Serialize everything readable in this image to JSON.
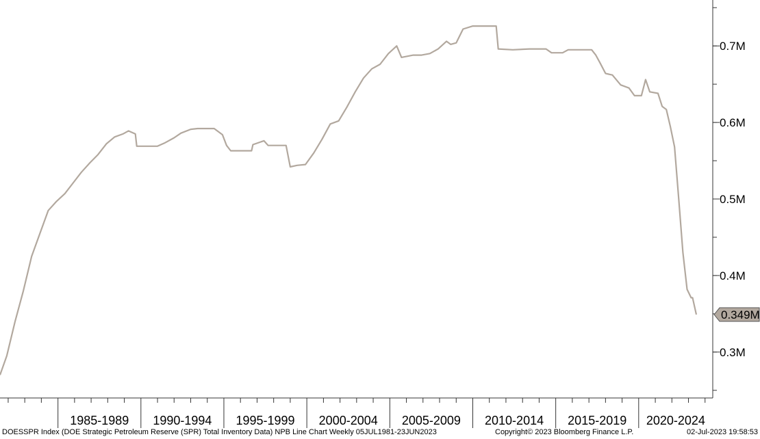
{
  "chart_data": {
    "type": "line",
    "title": "",
    "xlabel": "",
    "ylabel": "",
    "y_unit": "barrels",
    "ylim": [
      240000,
      760000
    ],
    "y_ticks": [
      {
        "value": 300000,
        "label": "0.3M"
      },
      {
        "value": 400000,
        "label": "0.4M"
      },
      {
        "value": 500000,
        "label": "0.5M"
      },
      {
        "value": 600000,
        "label": "0.6M"
      },
      {
        "value": 700000,
        "label": "0.7M"
      }
    ],
    "x_range": [
      "1981-07-05",
      "2023-06-23"
    ],
    "x_bins": [
      {
        "label": "1985-1989",
        "start": "1985-01-01",
        "end": "1990-01-01"
      },
      {
        "label": "1990-1994",
        "start": "1990-01-01",
        "end": "1995-01-01"
      },
      {
        "label": "1995-1999",
        "start": "1995-01-01",
        "end": "2000-01-01"
      },
      {
        "label": "2000-2004",
        "start": "2000-01-01",
        "end": "2005-01-01"
      },
      {
        "label": "2005-2009",
        "start": "2005-01-01",
        "end": "2010-01-01"
      },
      {
        "label": "2010-2014",
        "start": "2010-01-01",
        "end": "2015-01-01"
      },
      {
        "label": "2015-2019",
        "start": "2015-01-01",
        "end": "2020-01-01"
      },
      {
        "label": "2020-2024",
        "start": "2020-01-01",
        "end": "2025-01-01"
      }
    ],
    "last_value_label": "0.349M",
    "grid": false,
    "series": [
      {
        "color": "#b2a89e",
        "points": [
          [
            "1981-07-05",
            270000
          ],
          [
            "1981-12-01",
            295000
          ],
          [
            "1982-06-01",
            340000
          ],
          [
            "1982-12-01",
            380000
          ],
          [
            "1983-06-01",
            425000
          ],
          [
            "1983-12-01",
            455000
          ],
          [
            "1984-06-01",
            485000
          ],
          [
            "1984-12-01",
            497000
          ],
          [
            "1985-06-01",
            507000
          ],
          [
            "1985-12-01",
            521000
          ],
          [
            "1986-06-01",
            535000
          ],
          [
            "1986-12-01",
            547000
          ],
          [
            "1987-06-01",
            558000
          ],
          [
            "1987-12-01",
            572000
          ],
          [
            "1988-06-01",
            581000
          ],
          [
            "1988-12-01",
            585000
          ],
          [
            "1989-04-01",
            589000
          ],
          [
            "1989-09-01",
            585000
          ],
          [
            "1989-10-01",
            569000
          ],
          [
            "1990-06-01",
            569000
          ],
          [
            "1991-01-01",
            569000
          ],
          [
            "1991-06-01",
            573000
          ],
          [
            "1992-01-01",
            580000
          ],
          [
            "1992-06-01",
            586000
          ],
          [
            "1993-01-01",
            591000
          ],
          [
            "1993-06-01",
            592000
          ],
          [
            "1994-06-01",
            592000
          ],
          [
            "1994-12-01",
            584000
          ],
          [
            "1995-03-01",
            570000
          ],
          [
            "1995-06-01",
            563000
          ],
          [
            "1996-06-01",
            563000
          ],
          [
            "1996-09-01",
            563000
          ],
          [
            "1996-10-01",
            571000
          ],
          [
            "1997-06-01",
            576000
          ],
          [
            "1997-09-01",
            570000
          ],
          [
            "1998-06-01",
            570000
          ],
          [
            "1998-10-01",
            570000
          ],
          [
            "1999-01-01",
            542000
          ],
          [
            "1999-06-01",
            544000
          ],
          [
            "1999-12-01",
            545000
          ],
          [
            "2000-06-01",
            560000
          ],
          [
            "2000-12-01",
            578000
          ],
          [
            "2001-06-01",
            598000
          ],
          [
            "2001-12-01",
            602000
          ],
          [
            "2002-06-01",
            620000
          ],
          [
            "2002-12-01",
            640000
          ],
          [
            "2003-06-01",
            658000
          ],
          [
            "2003-12-01",
            670000
          ],
          [
            "2004-06-01",
            676000
          ],
          [
            "2004-12-01",
            690000
          ],
          [
            "2005-06-01",
            700000
          ],
          [
            "2005-09-15",
            685000
          ],
          [
            "2006-06-01",
            688000
          ],
          [
            "2006-12-01",
            688000
          ],
          [
            "2007-06-01",
            690000
          ],
          [
            "2007-12-01",
            696000
          ],
          [
            "2008-06-01",
            706000
          ],
          [
            "2008-09-01",
            702000
          ],
          [
            "2009-01-01",
            704000
          ],
          [
            "2009-06-01",
            722000
          ],
          [
            "2010-01-01",
            726000
          ],
          [
            "2011-06-01",
            726000
          ],
          [
            "2011-07-15",
            696000
          ],
          [
            "2012-06-01",
            695000
          ],
          [
            "2013-06-01",
            696000
          ],
          [
            "2014-06-01",
            696000
          ],
          [
            "2014-10-01",
            691000
          ],
          [
            "2015-06-01",
            691000
          ],
          [
            "2015-10-01",
            695000
          ],
          [
            "2016-06-01",
            695000
          ],
          [
            "2017-03-01",
            695000
          ],
          [
            "2017-06-01",
            688000
          ],
          [
            "2017-09-01",
            678000
          ],
          [
            "2018-01-01",
            664000
          ],
          [
            "2018-06-01",
            662000
          ],
          [
            "2018-12-01",
            649000
          ],
          [
            "2019-06-01",
            645000
          ],
          [
            "2019-10-01",
            635000
          ],
          [
            "2020-03-01",
            635000
          ],
          [
            "2020-06-01",
            656000
          ],
          [
            "2020-09-01",
            640000
          ],
          [
            "2021-03-01",
            638000
          ],
          [
            "2021-06-01",
            621000
          ],
          [
            "2021-09-01",
            617000
          ],
          [
            "2021-12-01",
            594000
          ],
          [
            "2022-03-01",
            568000
          ],
          [
            "2022-06-01",
            500000
          ],
          [
            "2022-09-01",
            430000
          ],
          [
            "2022-12-01",
            382000
          ],
          [
            "2023-03-01",
            371000
          ],
          [
            "2023-04-01",
            371000
          ],
          [
            "2023-06-23",
            349000
          ]
        ]
      }
    ]
  },
  "footer": {
    "left": "DOESSPR Index (DOE Strategic Petroleum Reserve (SPR) Total Inventory Data) NPB Line Chart  Weekly 05JUL1981-23JUN2023",
    "center": "Copyright© 2023 Bloomberg Finance L.P.",
    "right": "02-Jul-2023 19:58:53"
  }
}
